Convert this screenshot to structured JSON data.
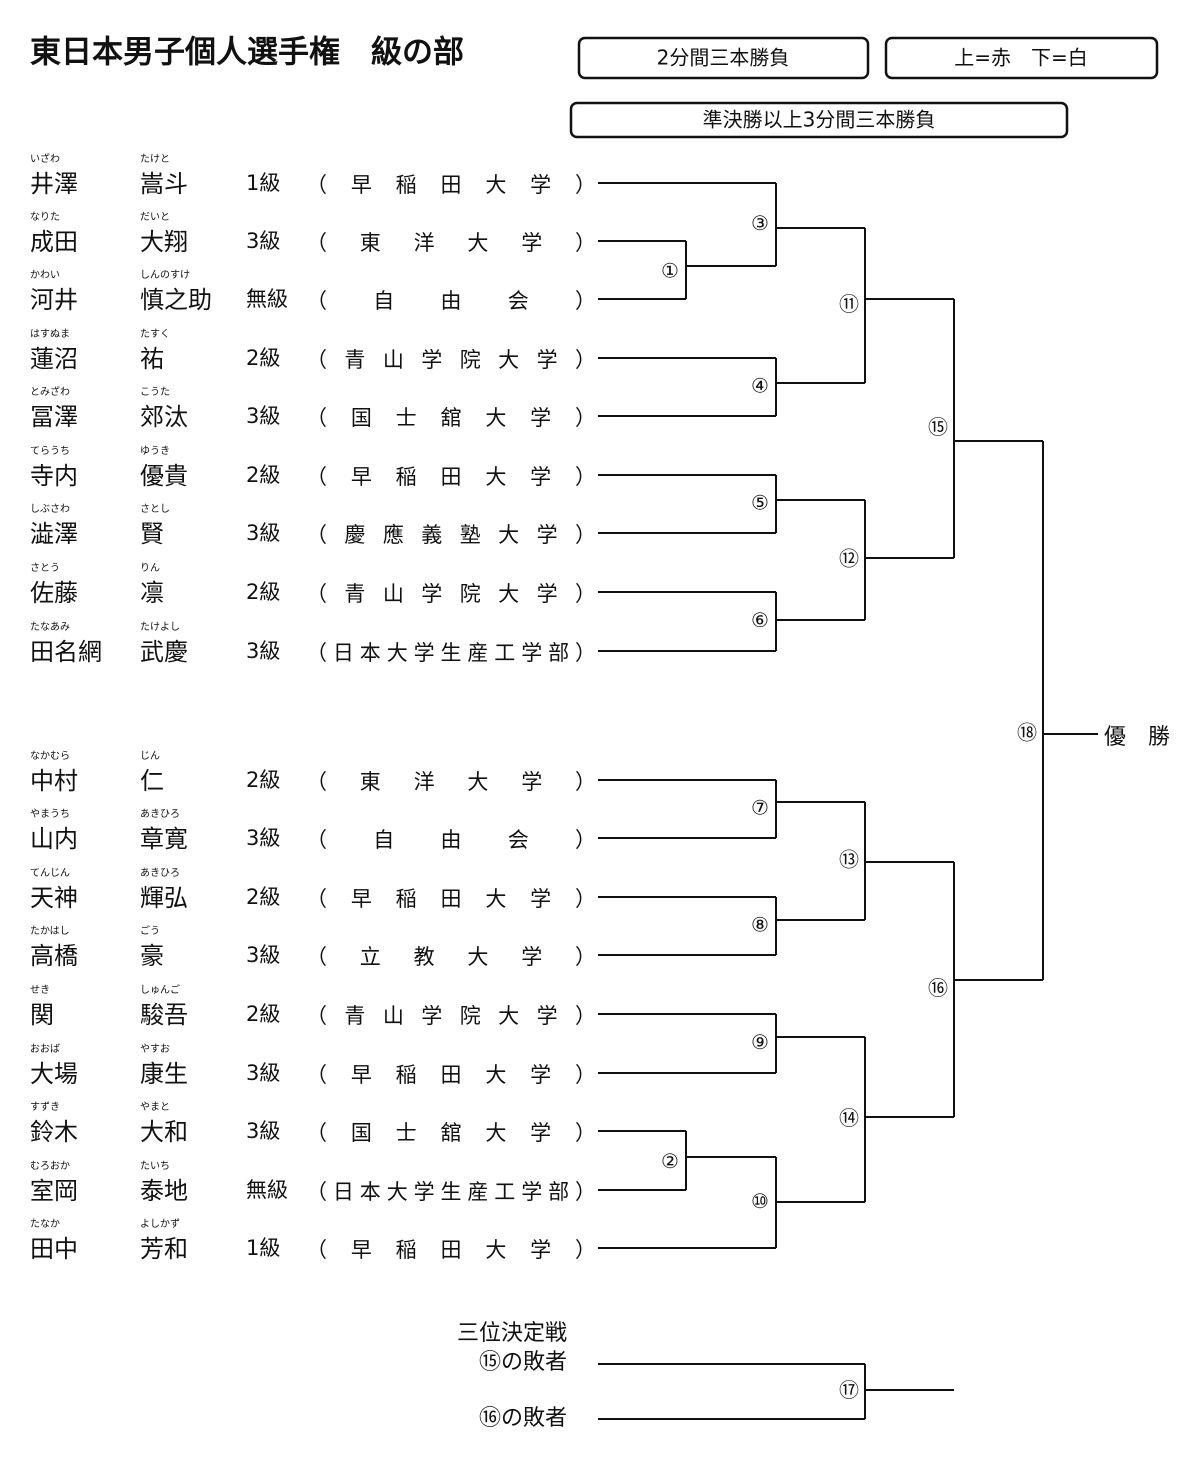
{
  "header": {
    "title": "東日本男子個人選手権　級の部",
    "rule_box": "2分間三本勝負",
    "color_box": "上=赤　下=白",
    "final_rule_box": "準決勝以上3分間三本勝負"
  },
  "players": [
    {
      "family_kana": "いざわ",
      "family": "井澤",
      "given_kana": "たけと",
      "given": "嵩斗",
      "grade": "1級",
      "school": "（早稲田大学）"
    },
    {
      "family_kana": "なりた",
      "family": "成田",
      "given_kana": "だいと",
      "given": "大翔",
      "grade": "3級",
      "school": "（東洋大学）"
    },
    {
      "family_kana": "かわい",
      "family": "河井",
      "given_kana": "しんのすけ",
      "given": "慎之助",
      "grade": "無級",
      "school": "（自由会）"
    },
    {
      "family_kana": "はすぬま",
      "family": "蓮沼",
      "given_kana": "たすく",
      "given": "祐",
      "grade": "2級",
      "school": "（青山学院大学）"
    },
    {
      "family_kana": "とみざわ",
      "family": "冨澤",
      "given_kana": "こうた",
      "given": "郊汰",
      "grade": "3級",
      "school": "（国士舘大学）"
    },
    {
      "family_kana": "てらうち",
      "family": "寺内",
      "given_kana": "ゆうき",
      "given": "優貴",
      "grade": "2級",
      "school": "（早稲田大学）"
    },
    {
      "family_kana": "しぶさわ",
      "family": "澁澤",
      "given_kana": "さとし",
      "given": "賢",
      "grade": "3級",
      "school": "（慶應義塾大学）"
    },
    {
      "family_kana": "さとう",
      "family": "佐藤",
      "given_kana": "りん",
      "given": "凛",
      "grade": "2級",
      "school": "（青山学院大学）"
    },
    {
      "family_kana": "たなあみ",
      "family": "田名網",
      "given_kana": "たけよし",
      "given": "武慶",
      "grade": "3級",
      "school": "（日本大学生産工学部）"
    },
    {
      "family_kana": "なかむら",
      "family": "中村",
      "given_kana": "じん",
      "given": "仁",
      "grade": "2級",
      "school": "（東洋大学）"
    },
    {
      "family_kana": "やまうち",
      "family": "山内",
      "given_kana": "あきひろ",
      "given": "章寛",
      "grade": "3級",
      "school": "（自由会）"
    },
    {
      "family_kana": "てんじん",
      "family": "天神",
      "given_kana": "あきひろ",
      "given": "輝弘",
      "grade": "2級",
      "school": "（早稲田大学）"
    },
    {
      "family_kana": "たかはし",
      "family": "高橋",
      "given_kana": "ごう",
      "given": "豪",
      "grade": "3級",
      "school": "（立教大学）"
    },
    {
      "family_kana": "せき",
      "family": "関",
      "given_kana": "しゅんご",
      "given": "駿吾",
      "grade": "2級",
      "school": "（青山学院大学）"
    },
    {
      "family_kana": "おおば",
      "family": "大場",
      "given_kana": "やすお",
      "given": "康生",
      "grade": "3級",
      "school": "（早稲田大学）"
    },
    {
      "family_kana": "すずき",
      "family": "鈴木",
      "given_kana": "やまと",
      "given": "大和",
      "grade": "3級",
      "school": "（国士舘大学）"
    },
    {
      "family_kana": "むろおか",
      "family": "室岡",
      "given_kana": "たいち",
      "given": "泰地",
      "grade": "無級",
      "school": "（日本大学生産工学部）"
    },
    {
      "family_kana": "たなか",
      "family": "田中",
      "given_kana": "よしかず",
      "given": "芳和",
      "grade": "1級",
      "school": "（早稲田大学）"
    }
  ],
  "matches": [
    "①",
    "②",
    "③",
    "④",
    "⑤",
    "⑥",
    "⑦",
    "⑧",
    "⑨",
    "⑩",
    "⑪",
    "⑫",
    "⑬",
    "⑭",
    "⑮",
    "⑯",
    "⑰",
    "⑱"
  ],
  "champion": "優　勝",
  "third_place": {
    "title": "三位決定戦",
    "top": "⑮の敗者",
    "bottom": "⑯の敗者"
  }
}
